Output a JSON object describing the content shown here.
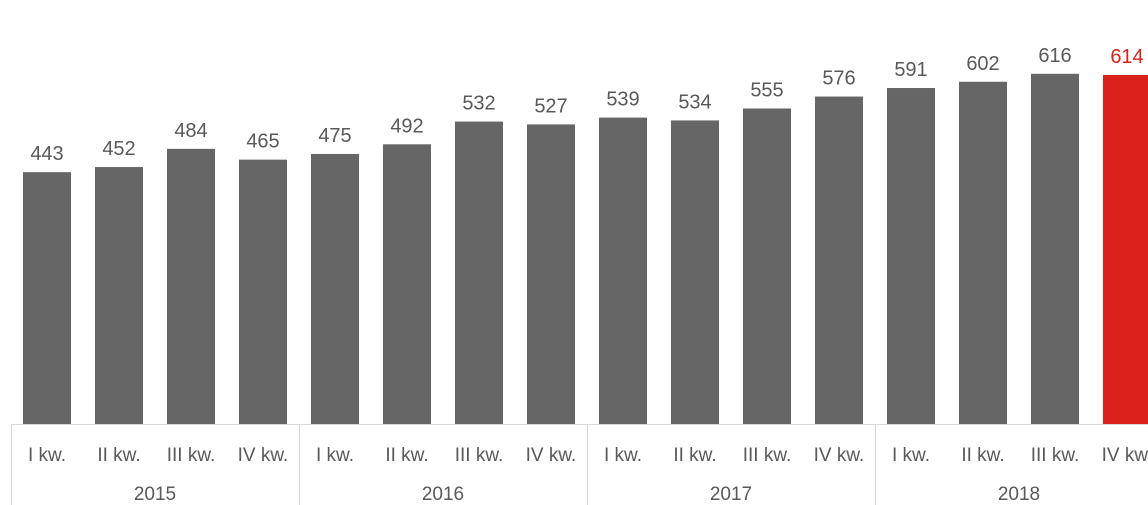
{
  "chart_data": {
    "type": "bar",
    "categories": [
      "I kw.",
      "II kw.",
      "III kw.",
      "IV kw.",
      "I kw.",
      "II kw.",
      "III kw.",
      "IV kw.",
      "I kw.",
      "II kw.",
      "III kw.",
      "IV kw.",
      "I kw.",
      "II kw.",
      "III kw.",
      "IV kw."
    ],
    "groups": [
      {
        "label": "2015",
        "count": 4
      },
      {
        "label": "2016",
        "count": 4
      },
      {
        "label": "2017",
        "count": 4
      },
      {
        "label": "2018",
        "count": 4
      }
    ],
    "values": [
      443,
      452,
      484,
      465,
      475,
      492,
      532,
      527,
      539,
      534,
      555,
      576,
      591,
      602,
      616,
      614
    ],
    "data_labels": [
      "443",
      "452",
      "484",
      "465",
      "475",
      "492",
      "532",
      "527",
      "539",
      "534",
      "555",
      "576",
      "591",
      "602",
      "616",
      "614"
    ],
    "highlight_index": 15,
    "ylim": [
      0,
      650
    ],
    "grid": false,
    "colors": {
      "bar": "#666666",
      "highlight": "#d9221c",
      "label": "#595959",
      "highlight_label": "#d9221c",
      "axis": "#d9d9d9"
    }
  }
}
